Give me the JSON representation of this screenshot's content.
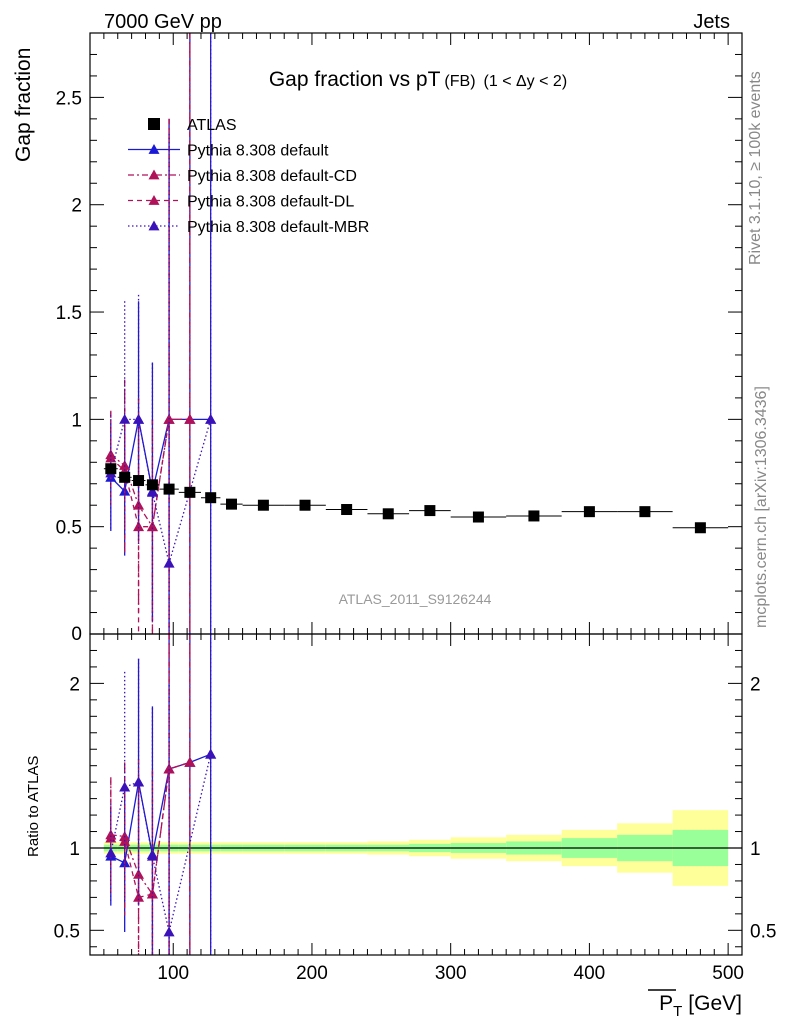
{
  "header": {
    "left": "7000 GeV pp",
    "right": "Jets",
    "side_top": "Rivet 3.1.10, ≥ 100k events",
    "side_bottom": "mcplots.cern.ch [arXiv:1306.3436]",
    "watermark": "ATLAS_2011_S9126244"
  },
  "chart_data": {
    "type": "scatter",
    "title": "Gap fraction vs pT",
    "title_sub": "(FB)",
    "title_tail": "(1 < Δy < 2)",
    "ylabel": "Gap fraction",
    "ratio_ylabel": "Ratio to ATLAS",
    "xlabel": "P̅T [GeV]",
    "xlabel_main": "P",
    "xlabel_sub": "T",
    "xlabel_unit": "[GeV]",
    "xlim": [
      40,
      510
    ],
    "ylim": [
      0,
      2.8
    ],
    "ratio_ylim": [
      0.35,
      2.3
    ],
    "x_ticks": [
      100,
      200,
      300,
      400,
      500
    ],
    "y_ticks": [
      0.5,
      1,
      1.5,
      2,
      2.5
    ],
    "y_tick_labels": [
      "0.5",
      "1",
      "1.5",
      "2",
      "2.5"
    ],
    "y_zero_label": "0",
    "ratio_ticks": [
      0.5,
      1,
      2
    ],
    "ratio_tick_labels": [
      "0.5",
      "1",
      "2"
    ],
    "legend_position": "top-left",
    "data": {
      "name": "ATLAS",
      "x": [
        55,
        65,
        75,
        85,
        97,
        112,
        127,
        142,
        165,
        195,
        225,
        255,
        285,
        320,
        360,
        400,
        440,
        480
      ],
      "xerr": [
        5,
        5,
        5,
        5,
        7,
        8,
        7,
        8,
        15,
        15,
        15,
        15,
        15,
        20,
        20,
        20,
        20,
        20
      ],
      "y": [
        0.77,
        0.73,
        0.715,
        0.695,
        0.675,
        0.66,
        0.635,
        0.605,
        0.6,
        0.6,
        0.58,
        0.56,
        0.575,
        0.545,
        0.55,
        0.57,
        0.57,
        0.495
      ],
      "band_inner": [
        0.02,
        0.02,
        0.02,
        0.02,
        0.02,
        0.02,
        0.02,
        0.02,
        0.02,
        0.02,
        0.02,
        0.02,
        0.025,
        0.03,
        0.04,
        0.06,
        0.08,
        0.11
      ],
      "band_outer": [
        0.035,
        0.035,
        0.035,
        0.035,
        0.035,
        0.035,
        0.035,
        0.035,
        0.035,
        0.035,
        0.035,
        0.04,
        0.05,
        0.065,
        0.08,
        0.11,
        0.15,
        0.23
      ]
    },
    "series": [
      {
        "name": "Pythia 8.308 default",
        "color": "#1a1ad6",
        "dash": "",
        "x": [
          55,
          65,
          75,
          85,
          97,
          112,
          127
        ],
        "y": [
          0.73,
          0.665,
          1.0,
          0.665,
          1.0,
          1.0,
          1.0
        ],
        "err": [
          0.25,
          0.3,
          0.55,
          0.6,
          1.4,
          1.8,
          1.8
        ],
        "ratio": [
          0.95,
          0.91,
          1.4,
          0.96,
          1.48,
          1.52,
          1.57
        ],
        "ratio_err": [
          0.3,
          0.42,
          0.75,
          0.9,
          1.5,
          1.5,
          1.5
        ]
      },
      {
        "name": "Pythia 8.308 default-CD",
        "color": "#b0125a",
        "dash": "6,3,2,3",
        "x": [
          55,
          65,
          75,
          85,
          97,
          112
        ],
        "y": [
          0.835,
          0.785,
          0.6,
          0.5,
          1.0,
          1.0
        ],
        "err": [
          0.2,
          0.4,
          0.5,
          0.5,
          1.4,
          1.8
        ],
        "ratio": [
          1.08,
          1.07,
          0.84,
          0.72,
          1.48,
          1.52
        ],
        "ratio_err": [
          0.35,
          0.45,
          0.7,
          0.75,
          1.5,
          1.5
        ]
      },
      {
        "name": "Pythia 8.308 default-DL",
        "color": "#b0125a",
        "dash": "5,4",
        "x": [
          55,
          65,
          75,
          85,
          97,
          112
        ],
        "y": [
          0.82,
          0.76,
          0.5,
          0.5,
          1.0,
          1.0
        ],
        "err": [
          0.22,
          0.38,
          0.5,
          0.5,
          1.4,
          1.8
        ],
        "ratio": [
          1.06,
          1.04,
          0.7,
          0.72,
          1.48,
          1.52
        ],
        "ratio_err": [
          0.35,
          0.45,
          0.7,
          0.75,
          1.5,
          1.5
        ]
      },
      {
        "name": "Pythia 8.308 default-MBR",
        "color": "#3a12b8",
        "dash": "1.5,2.5",
        "x": [
          55,
          65,
          75,
          85,
          97,
          127
        ],
        "y": [
          0.75,
          1.0,
          1.0,
          0.66,
          0.33,
          1.0
        ],
        "err": [
          0.27,
          0.55,
          0.58,
          0.6,
          2.0,
          1.8
        ],
        "ratio": [
          0.97,
          1.37,
          1.4,
          0.95,
          0.49,
          1.57
        ],
        "ratio_err": [
          0.3,
          0.7,
          0.75,
          0.9,
          1.5,
          1.5
        ]
      }
    ]
  }
}
